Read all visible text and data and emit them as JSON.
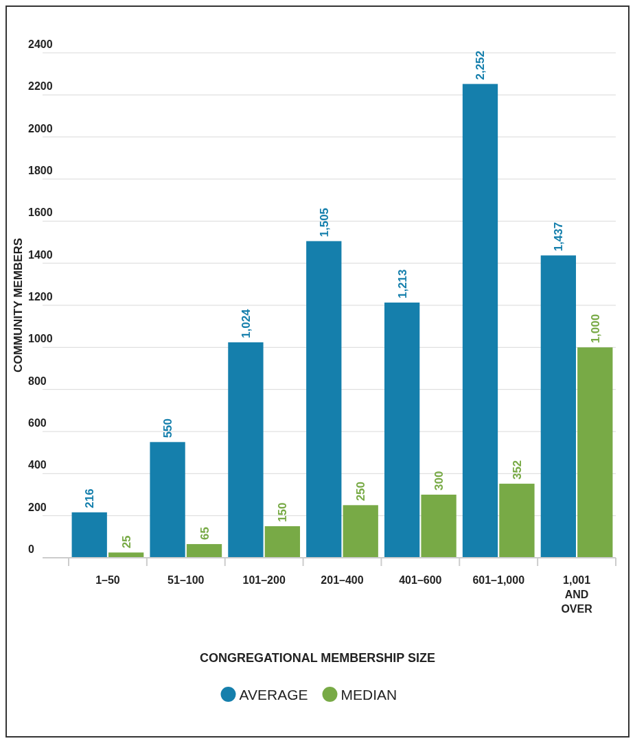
{
  "chart_data": {
    "type": "bar",
    "xlabel": "CONGREGATIONAL MEMBERSHIP SIZE",
    "ylabel": "COMMUNITY MEMBERS",
    "categories": [
      "1–50",
      "51–100",
      "101–200",
      "201–400",
      "401–600",
      "601–1,000",
      "1,001 AND OVER"
    ],
    "series": [
      {
        "name": "AVERAGE",
        "color": "#157fac",
        "values": [
          216,
          550,
          1024,
          1505,
          1213,
          2252,
          1437
        ],
        "value_labels": [
          "216",
          "550",
          "1,024",
          "1,505",
          "1,213",
          "2,252",
          "1,437"
        ]
      },
      {
        "name": "MEDIAN",
        "color": "#78aa46",
        "values": [
          25,
          65,
          150,
          250,
          300,
          352,
          1000
        ],
        "value_labels": [
          "25",
          "65",
          "150",
          "250",
          "300",
          "352",
          "1,000"
        ]
      }
    ],
    "ylim": [
      0,
      2400
    ],
    "yticks": [
      0,
      200,
      400,
      600,
      800,
      1000,
      1200,
      1400,
      1600,
      1800,
      2000,
      2200,
      2400
    ],
    "grid": "y",
    "legend": "bottom"
  }
}
